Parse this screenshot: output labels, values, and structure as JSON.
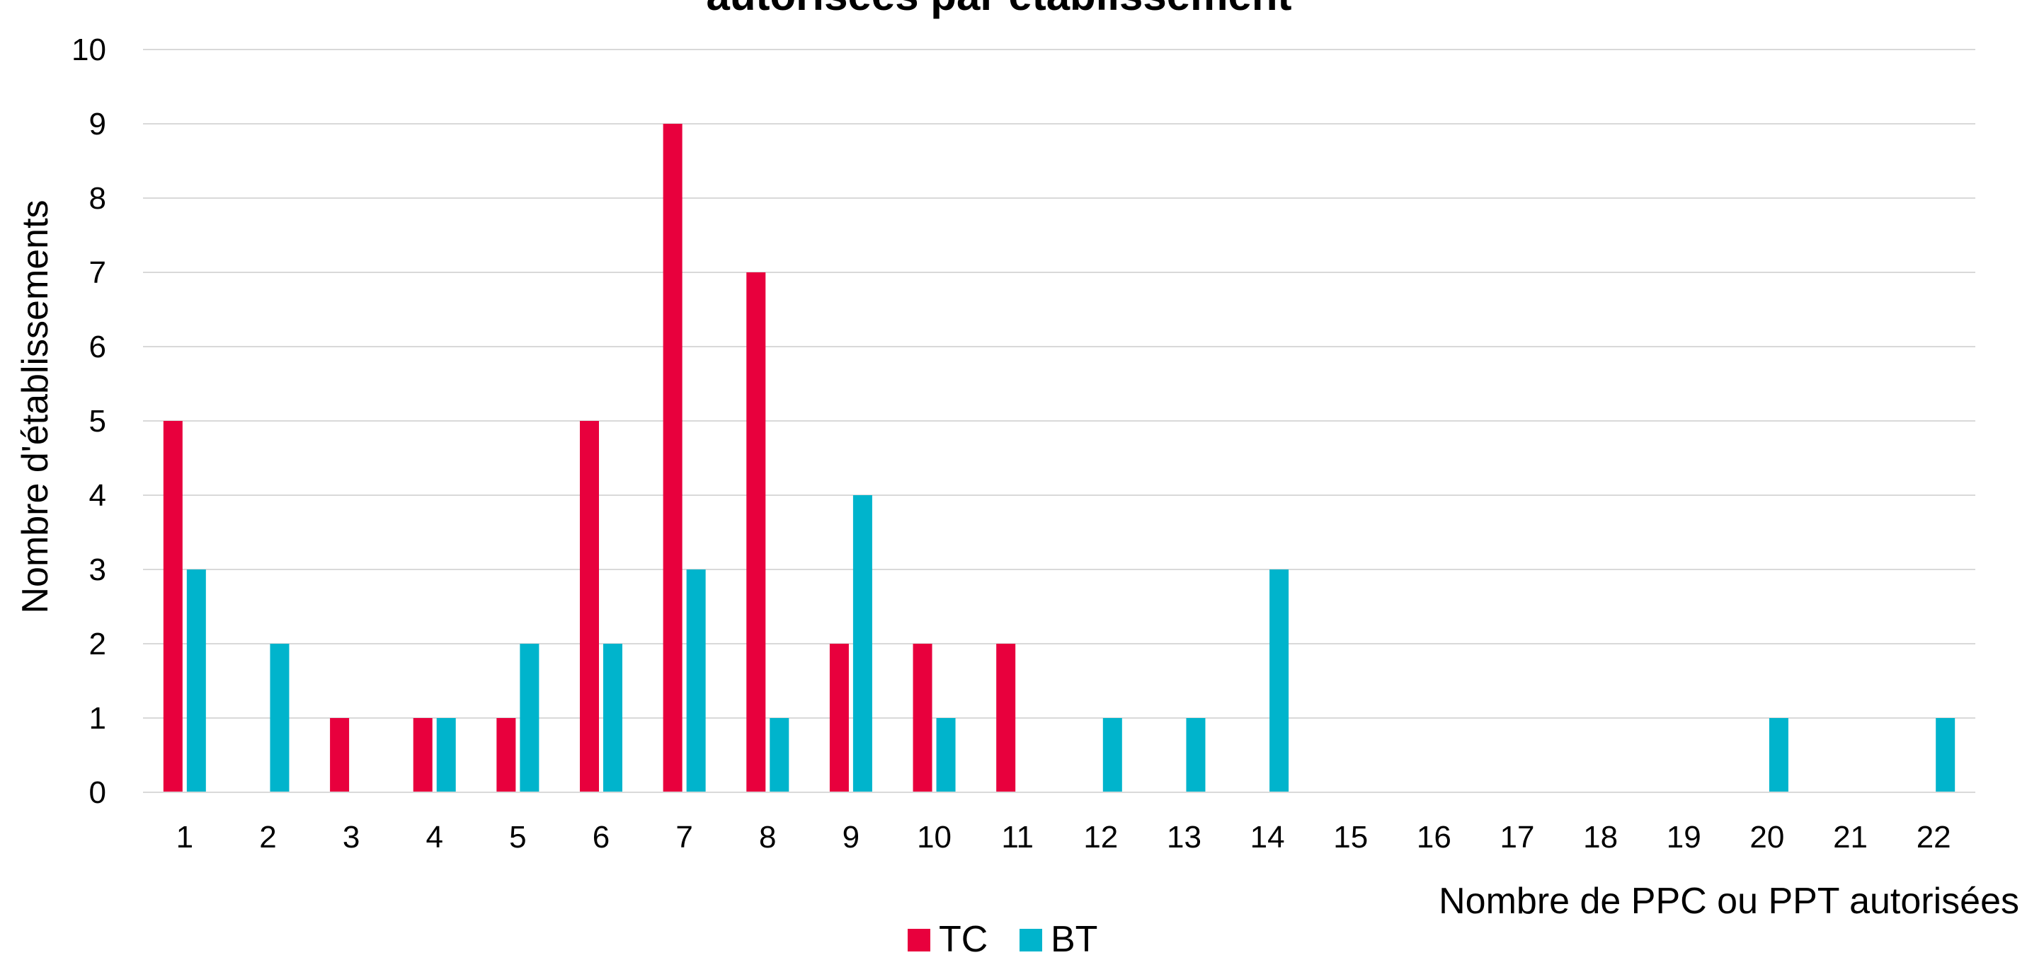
{
  "chart_data": {
    "type": "bar",
    "title": "autorisées par établissement",
    "xlabel": "Nombre de PPC ou PPT autorisées",
    "ylabel": "Nombre d'établissements",
    "categories": [
      "1",
      "2",
      "3",
      "4",
      "5",
      "6",
      "7",
      "8",
      "9",
      "10",
      "11",
      "12",
      "13",
      "14",
      "15",
      "16",
      "17",
      "18",
      "19",
      "20",
      "21",
      "22"
    ],
    "series": [
      {
        "name": "TC",
        "color": "#E8003D",
        "values": [
          5,
          0,
          1,
          1,
          1,
          5,
          9,
          7,
          2,
          2,
          2,
          0,
          0,
          0,
          0,
          0,
          0,
          0,
          0,
          0,
          0,
          0
        ]
      },
      {
        "name": "BT",
        "color": "#00B4CC",
        "values": [
          3,
          2,
          0,
          1,
          2,
          2,
          3,
          1,
          4,
          1,
          0,
          1,
          1,
          3,
          0,
          0,
          0,
          0,
          0,
          1,
          0,
          1
        ]
      }
    ],
    "ylim": [
      0,
      10
    ],
    "yticks": [
      0,
      1,
      2,
      3,
      4,
      5,
      6,
      7,
      8,
      9,
      10
    ],
    "grid": true,
    "legend_position": "bottom-center"
  }
}
